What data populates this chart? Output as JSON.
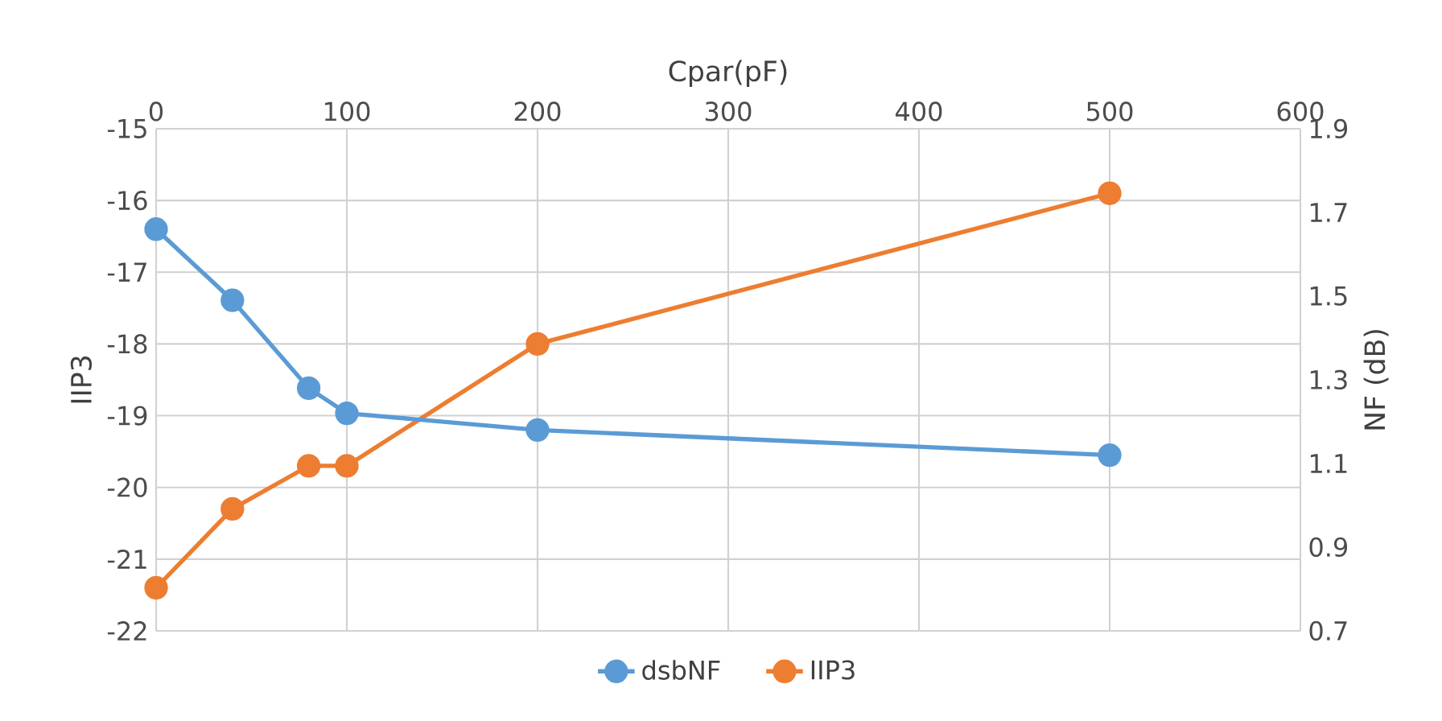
{
  "chart_data": {
    "type": "line",
    "xlabel": "Cpar(pF)",
    "ylabel": "IIP3",
    "y2label": "NF (dB)",
    "x": [
      0,
      40,
      80,
      100,
      200,
      500
    ],
    "series": [
      {
        "name": "dsbNF",
        "color": "#5b9bd5",
        "axis": "y2",
        "values": [
          1.66,
          1.49,
          1.28,
          1.22,
          1.18,
          1.12
        ]
      },
      {
        "name": "IIP3",
        "color": "#ed7d31",
        "values": [
          -21.4,
          -20.3,
          -19.7,
          -19.7,
          -18.0,
          -15.9
        ]
      }
    ],
    "xlim": [
      0,
      600
    ],
    "xticks": [
      0,
      100,
      200,
      300,
      400,
      500,
      600
    ],
    "ylim": [
      -22,
      -15
    ],
    "yticks": [
      -22,
      -21,
      -20,
      -19,
      -18,
      -17,
      -16,
      -15
    ],
    "y2lim": [
      0.7,
      1.9
    ],
    "y2ticks": [
      0.7,
      0.9,
      1.1,
      1.3,
      1.5,
      1.7,
      1.9
    ],
    "grid": true,
    "legend": "bottom",
    "marker": "circle",
    "line_style": "solid"
  }
}
